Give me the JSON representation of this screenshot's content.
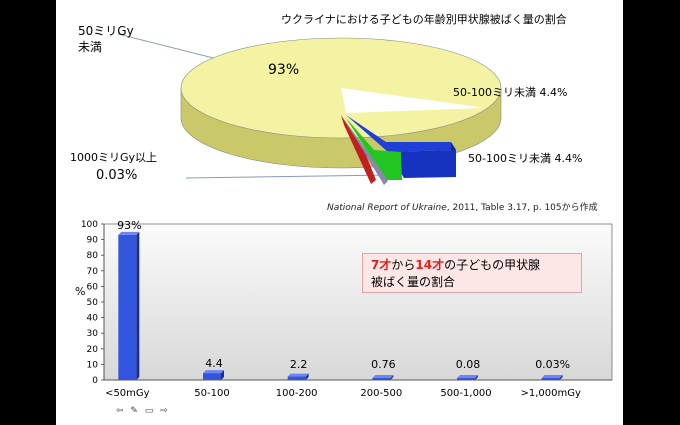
{
  "pie": {
    "title": "ウクライナにおける子どもの年齢別甲状腺被ばく量の割合",
    "labels": {
      "under50_line1": "50ミリGy",
      "under50_line2": "未満",
      "under50_pct": "93%",
      "s50_100_a": "50-100ミリ未満  4.4%",
      "s50_100_b": "50-100ミリ未満  4.4%",
      "over1000_line1": "1000ミリGy以上",
      "over1000_line2": "0.03%"
    },
    "colors": {
      "main": "#f3f3a3",
      "main_side": "#c9c96a",
      "blue": "#1f3fd6",
      "green": "#22c522",
      "red": "#c02020",
      "gray": "#8888aa"
    }
  },
  "source": {
    "italic": "National Report of Ukraine",
    "rest": ", 2011, Table 3.17, p. 105から作成"
  },
  "note": {
    "age1": "7才",
    "mid": "から",
    "age2": "14才",
    "line1_rest": "の子どもの甲状腺",
    "line2": "被ばく量の割合"
  },
  "footer_icons": "⇦ ✎ ▭ ⇨",
  "chart_data": {
    "type": "bar",
    "categories": [
      "<50mGy",
      "50-100",
      "100-200",
      "200-500",
      "500-1,000",
      ">1,000mGy"
    ],
    "values": [
      93,
      4.4,
      2.2,
      0.76,
      0.08,
      0.03
    ],
    "data_labels": [
      "93%",
      "4.4",
      "2.2",
      "0.76",
      "0.08",
      "0.03%"
    ],
    "ylabel": "%",
    "ylim": [
      0,
      100
    ],
    "yticks": [
      0,
      10,
      20,
      30,
      40,
      50,
      60,
      70,
      80,
      90,
      100
    ],
    "grid": false,
    "bar_color": "#3355dd"
  }
}
